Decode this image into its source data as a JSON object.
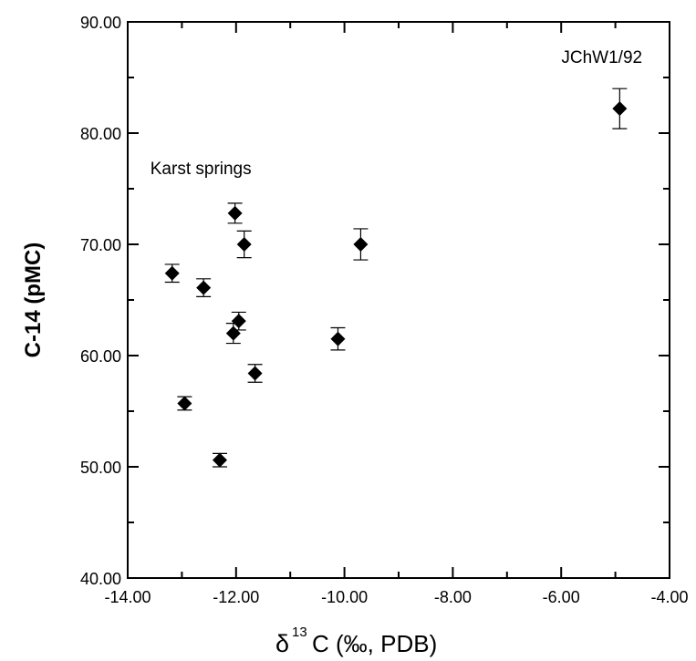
{
  "chart_data": {
    "type": "scatter",
    "xlim": [
      -14,
      -4
    ],
    "ylim": [
      40,
      90
    ],
    "x_ticks": [
      -14,
      -12,
      -10,
      -8,
      -6,
      -4
    ],
    "y_ticks": [
      40,
      50,
      60,
      70,
      80,
      90
    ],
    "x_tick_labels": [
      "-14.00",
      "-12.00",
      "-10.00",
      "-8.00",
      "-6.00",
      "-4.00"
    ],
    "y_tick_labels": [
      "40.00",
      "50.00",
      "60.00",
      "70.00",
      "80.00",
      "90.00"
    ],
    "xlabel": "δ13C (‰, PDB)",
    "xlabel_parts": {
      "delta": "δ",
      "superscript": "13",
      "rest": "C (‰, PDB)"
    },
    "ylabel": "C-14 (pMC)",
    "grid": false,
    "marker": "diamond",
    "points": [
      {
        "x": -13.18,
        "y": 67.4,
        "err": 0.8
      },
      {
        "x": -12.95,
        "y": 55.7,
        "err": 0.6
      },
      {
        "x": -12.6,
        "y": 66.1,
        "err": 0.8
      },
      {
        "x": -12.3,
        "y": 50.6,
        "err": 0.6
      },
      {
        "x": -12.05,
        "y": 62.0,
        "err": 0.9
      },
      {
        "x": -12.02,
        "y": 72.8,
        "err": 0.9
      },
      {
        "x": -11.95,
        "y": 63.1,
        "err": 0.8
      },
      {
        "x": -11.85,
        "y": 70.0,
        "err": 1.2
      },
      {
        "x": -11.65,
        "y": 58.4,
        "err": 0.8
      },
      {
        "x": -10.12,
        "y": 61.5,
        "err": 1.0
      },
      {
        "x": -9.7,
        "y": 70.0,
        "err": 1.4
      },
      {
        "x": -4.92,
        "y": 82.2,
        "err": 1.8
      }
    ],
    "annotations": [
      {
        "text": "Karst springs",
        "x": -12.65,
        "y": 76.3
      },
      {
        "text": "JChW1/92",
        "x": -5.25,
        "y": 86.3
      }
    ]
  }
}
